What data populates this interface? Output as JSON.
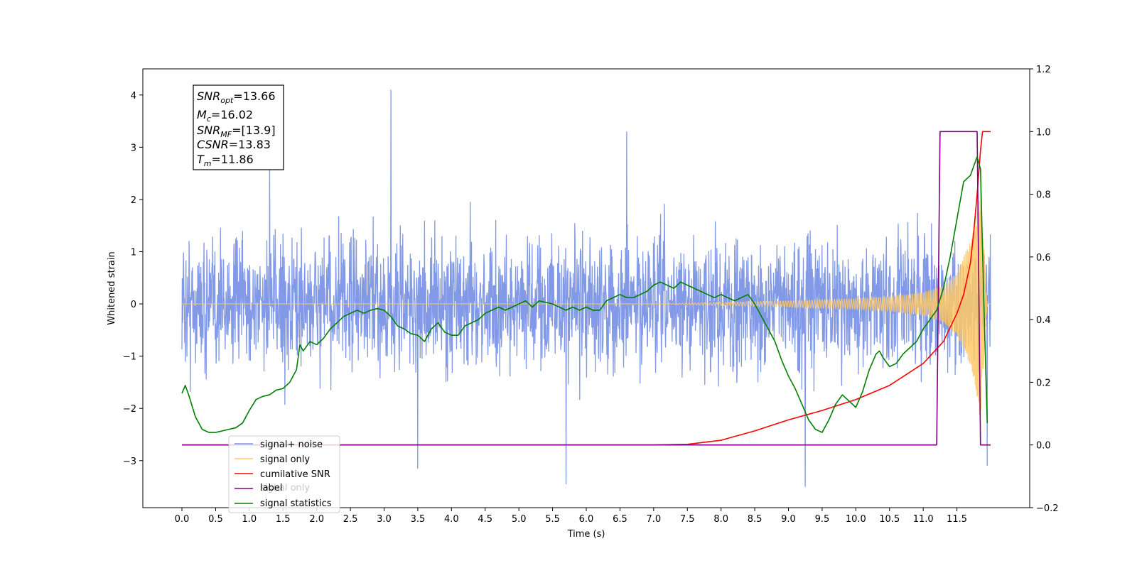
{
  "chart_data": {
    "type": "line",
    "xlabel": "Time (s)",
    "ylabel": "Whitened strain",
    "xlim": [
      -0.58,
      12.58
    ],
    "ylim": [
      -3.9,
      4.5
    ],
    "y2lim": [
      -0.2,
      1.2
    ],
    "x_ticks": [
      "0.0",
      "0.5",
      "1.0",
      "1.5",
      "2.0",
      "2.5",
      "3.0",
      "3.5",
      "4.0",
      "4.5",
      "5.0",
      "5.5",
      "6.0",
      "6.5",
      "7.0",
      "7.5",
      "8.0",
      "8.5",
      "9.0",
      "9.5",
      "10.0",
      "10.5",
      "11.0",
      "11.5"
    ],
    "y_ticks": [
      "4",
      "3",
      "2",
      "1",
      "0",
      "−1",
      "−2",
      "−3"
    ],
    "y2_ticks": [
      "1.2",
      "1.0",
      "0.8",
      "0.6",
      "0.4",
      "0.2",
      "0.0",
      "−0.2"
    ],
    "info_box": {
      "snr_opt": {
        "sym": "SNR",
        "sub": "opt",
        "val": "=13.66"
      },
      "mc": {
        "sym": "M",
        "sub": "c",
        "val": "=16.02"
      },
      "snr_mf": {
        "sym": "SNR",
        "sub": "MF",
        "val": "=[13.9]"
      },
      "csnr": {
        "sym": "CSNR",
        "val": "=13.83"
      },
      "tm": {
        "sym": "T",
        "sub": "m",
        "val": "=11.86"
      }
    },
    "legend": {
      "placement": "lower-left",
      "entries": [
        {
          "label": "signal+ noise",
          "color": "#7b93e6"
        },
        {
          "label": "signal only",
          "color": "#ffc966"
        },
        {
          "label": "cumilative SNR",
          "color": "#ff0000"
        },
        {
          "label": "label",
          "color": "#800080"
        },
        {
          "label": "signal statistics",
          "color": "#008000"
        }
      ],
      "overlapped_text": "signal only"
    },
    "series": [
      {
        "name": "signal+ noise",
        "axis": "left",
        "color": "#7b93e6",
        "x_range": [
          0.0,
          12.0
        ],
        "envelope": {
          "typical": 1.3,
          "spikes": [
            [
              3.1,
              4.1
            ],
            [
              5.7,
              -3.45
            ],
            [
              9.25,
              -3.5
            ],
            [
              6.6,
              3.3
            ],
            [
              1.3,
              2.7
            ],
            [
              3.5,
              -3.15
            ],
            [
              11.95,
              -3.1
            ]
          ]
        }
      },
      {
        "name": "signal only",
        "axis": "left",
        "color": "#ffc966",
        "x_range": [
          0.0,
          12.0
        ],
        "envelope_amp": [
          [
            0.0,
            0.0
          ],
          [
            7.0,
            0.0
          ],
          [
            8.0,
            0.03
          ],
          [
            9.0,
            0.06
          ],
          [
            10.0,
            0.1
          ],
          [
            10.5,
            0.14
          ],
          [
            11.0,
            0.22
          ],
          [
            11.3,
            0.35
          ],
          [
            11.5,
            0.6
          ],
          [
            11.7,
            1.2
          ],
          [
            11.8,
            1.8
          ],
          [
            11.85,
            2.3
          ],
          [
            11.9,
            1.2
          ],
          [
            11.95,
            0.0
          ]
        ]
      },
      {
        "name": "cumilative SNR",
        "axis": "right",
        "color": "#ff0000",
        "points": [
          [
            0,
            0
          ],
          [
            7.0,
            0
          ],
          [
            7.5,
            0.002
          ],
          [
            8.0,
            0.015
          ],
          [
            8.5,
            0.045
          ],
          [
            9.0,
            0.08
          ],
          [
            9.5,
            0.11
          ],
          [
            10.0,
            0.145
          ],
          [
            10.5,
            0.19
          ],
          [
            11.0,
            0.26
          ],
          [
            11.3,
            0.33
          ],
          [
            11.5,
            0.42
          ],
          [
            11.6,
            0.48
          ],
          [
            11.7,
            0.58
          ],
          [
            11.75,
            0.68
          ],
          [
            11.8,
            0.8
          ],
          [
            11.85,
            0.94
          ],
          [
            11.88,
            1.0
          ],
          [
            12.0,
            1.0
          ]
        ]
      },
      {
        "name": "label",
        "axis": "right",
        "color": "#800080",
        "points": [
          [
            0,
            0
          ],
          [
            11.2,
            0
          ],
          [
            11.25,
            1.0
          ],
          [
            11.8,
            1.0
          ],
          [
            11.85,
            0
          ],
          [
            12.0,
            0
          ]
        ]
      },
      {
        "name": "signal statistics",
        "axis": "right",
        "color": "#008000",
        "points": [
          [
            0.0,
            0.165
          ],
          [
            0.05,
            0.19
          ],
          [
            0.1,
            0.16
          ],
          [
            0.2,
            0.09
          ],
          [
            0.3,
            0.05
          ],
          [
            0.4,
            0.04
          ],
          [
            0.5,
            0.04
          ],
          [
            0.6,
            0.045
          ],
          [
            0.7,
            0.05
          ],
          [
            0.8,
            0.055
          ],
          [
            0.9,
            0.07
          ],
          [
            1.0,
            0.11
          ],
          [
            1.1,
            0.145
          ],
          [
            1.2,
            0.155
          ],
          [
            1.3,
            0.16
          ],
          [
            1.4,
            0.175
          ],
          [
            1.5,
            0.18
          ],
          [
            1.6,
            0.2
          ],
          [
            1.7,
            0.24
          ],
          [
            1.75,
            0.32
          ],
          [
            1.8,
            0.3
          ],
          [
            1.9,
            0.33
          ],
          [
            2.0,
            0.32
          ],
          [
            2.1,
            0.34
          ],
          [
            2.2,
            0.37
          ],
          [
            2.3,
            0.39
          ],
          [
            2.4,
            0.41
          ],
          [
            2.5,
            0.42
          ],
          [
            2.6,
            0.43
          ],
          [
            2.7,
            0.42
          ],
          [
            2.8,
            0.43
          ],
          [
            2.9,
            0.435
          ],
          [
            3.0,
            0.43
          ],
          [
            3.1,
            0.41
          ],
          [
            3.2,
            0.38
          ],
          [
            3.3,
            0.37
          ],
          [
            3.4,
            0.355
          ],
          [
            3.5,
            0.35
          ],
          [
            3.6,
            0.33
          ],
          [
            3.7,
            0.37
          ],
          [
            3.8,
            0.39
          ],
          [
            3.9,
            0.36
          ],
          [
            4.0,
            0.35
          ],
          [
            4.1,
            0.35
          ],
          [
            4.2,
            0.38
          ],
          [
            4.3,
            0.39
          ],
          [
            4.4,
            0.4
          ],
          [
            4.5,
            0.42
          ],
          [
            4.6,
            0.43
          ],
          [
            4.7,
            0.44
          ],
          [
            4.8,
            0.43
          ],
          [
            4.9,
            0.44
          ],
          [
            5.0,
            0.45
          ],
          [
            5.1,
            0.46
          ],
          [
            5.2,
            0.44
          ],
          [
            5.3,
            0.46
          ],
          [
            5.4,
            0.455
          ],
          [
            5.5,
            0.45
          ],
          [
            5.6,
            0.44
          ],
          [
            5.7,
            0.43
          ],
          [
            5.8,
            0.44
          ],
          [
            5.9,
            0.43
          ],
          [
            6.0,
            0.44
          ],
          [
            6.1,
            0.43
          ],
          [
            6.2,
            0.43
          ],
          [
            6.3,
            0.46
          ],
          [
            6.4,
            0.47
          ],
          [
            6.5,
            0.48
          ],
          [
            6.6,
            0.47
          ],
          [
            6.7,
            0.47
          ],
          [
            6.8,
            0.48
          ],
          [
            6.9,
            0.49
          ],
          [
            7.0,
            0.51
          ],
          [
            7.1,
            0.52
          ],
          [
            7.2,
            0.51
          ],
          [
            7.3,
            0.5
          ],
          [
            7.4,
            0.52
          ],
          [
            7.5,
            0.51
          ],
          [
            7.6,
            0.5
          ],
          [
            7.7,
            0.49
          ],
          [
            7.8,
            0.48
          ],
          [
            7.9,
            0.47
          ],
          [
            8.0,
            0.48
          ],
          [
            8.1,
            0.47
          ],
          [
            8.2,
            0.46
          ],
          [
            8.3,
            0.47
          ],
          [
            8.4,
            0.48
          ],
          [
            8.5,
            0.45
          ],
          [
            8.6,
            0.41
          ],
          [
            8.7,
            0.37
          ],
          [
            8.8,
            0.33
          ],
          [
            8.9,
            0.27
          ],
          [
            9.0,
            0.22
          ],
          [
            9.1,
            0.18
          ],
          [
            9.2,
            0.13
          ],
          [
            9.3,
            0.08
          ],
          [
            9.4,
            0.05
          ],
          [
            9.5,
            0.04
          ],
          [
            9.6,
            0.08
          ],
          [
            9.7,
            0.13
          ],
          [
            9.8,
            0.16
          ],
          [
            9.9,
            0.14
          ],
          [
            10.0,
            0.12
          ],
          [
            10.1,
            0.17
          ],
          [
            10.2,
            0.24
          ],
          [
            10.3,
            0.29
          ],
          [
            10.35,
            0.3
          ],
          [
            10.4,
            0.28
          ],
          [
            10.5,
            0.25
          ],
          [
            10.6,
            0.26
          ],
          [
            10.7,
            0.29
          ],
          [
            10.8,
            0.31
          ],
          [
            10.9,
            0.33
          ],
          [
            11.0,
            0.37
          ],
          [
            11.1,
            0.4
          ],
          [
            11.2,
            0.43
          ],
          [
            11.3,
            0.5
          ],
          [
            11.4,
            0.6
          ],
          [
            11.5,
            0.72
          ],
          [
            11.6,
            0.84
          ],
          [
            11.7,
            0.86
          ],
          [
            11.8,
            0.92
          ],
          [
            11.85,
            0.88
          ],
          [
            11.9,
            0.45
          ],
          [
            11.95,
            0.07
          ]
        ]
      }
    ]
  }
}
